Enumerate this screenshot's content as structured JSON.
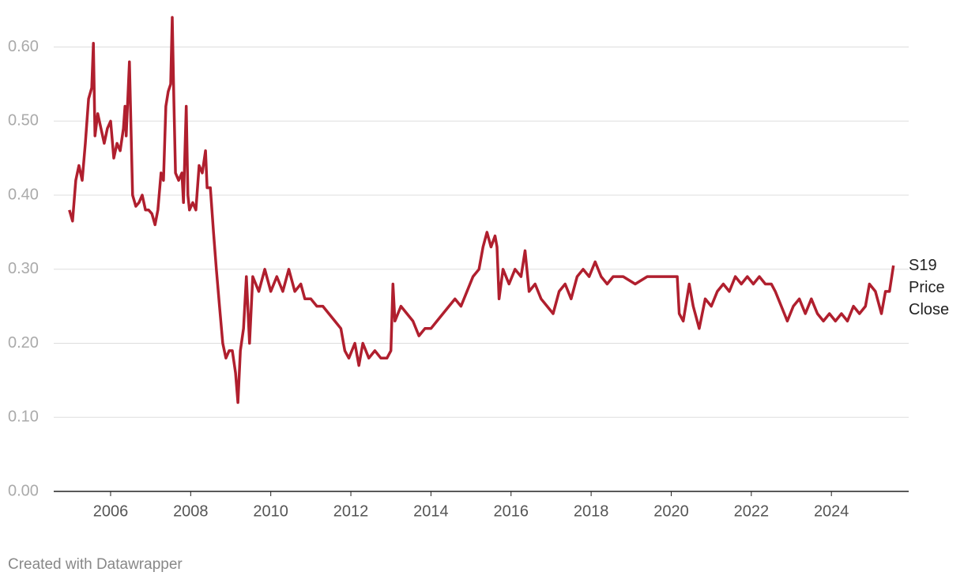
{
  "chart_data": {
    "type": "line",
    "x": [
      2004.97,
      2005.05,
      2005.13,
      2005.21,
      2005.29,
      2005.37,
      2005.45,
      2005.53,
      2005.57,
      2005.61,
      2005.68,
      2005.76,
      2005.84,
      2005.92,
      2006.0,
      2006.08,
      2006.16,
      2006.24,
      2006.32,
      2006.36,
      2006.39,
      2006.47,
      2006.55,
      2006.63,
      2006.71,
      2006.79,
      2006.87,
      2006.95,
      2007.03,
      2007.11,
      2007.18,
      2007.26,
      2007.32,
      2007.38,
      2007.44,
      2007.5,
      2007.54,
      2007.58,
      2007.62,
      2007.7,
      2007.78,
      2007.82,
      2007.89,
      2007.93,
      2007.97,
      2008.05,
      2008.13,
      2008.21,
      2008.29,
      2008.37,
      2008.41,
      2008.49,
      2008.57,
      2008.64,
      2008.72,
      2008.8,
      2008.88,
      2008.96,
      2009.04,
      2009.12,
      2009.18,
      2009.24,
      2009.32,
      2009.39,
      2009.47,
      2009.55,
      2009.7,
      2009.85,
      2010.0,
      2010.15,
      2010.3,
      2010.45,
      2010.6,
      2010.75,
      2010.85,
      2011.0,
      2011.15,
      2011.3,
      2011.45,
      2011.6,
      2011.75,
      2011.85,
      2011.95,
      2012.1,
      2012.2,
      2012.3,
      2012.45,
      2012.6,
      2012.75,
      2012.9,
      2013.0,
      2013.05,
      2013.1,
      2013.25,
      2013.4,
      2013.55,
      2013.7,
      2013.85,
      2014.0,
      2014.15,
      2014.3,
      2014.45,
      2014.6,
      2014.75,
      2014.9,
      2015.05,
      2015.2,
      2015.3,
      2015.4,
      2015.5,
      2015.6,
      2015.65,
      2015.7,
      2015.8,
      2015.95,
      2016.1,
      2016.25,
      2016.35,
      2016.45,
      2016.6,
      2016.75,
      2016.9,
      2017.05,
      2017.2,
      2017.35,
      2017.5,
      2017.65,
      2017.8,
      2017.95,
      2018.1,
      2018.25,
      2018.4,
      2018.55,
      2018.8,
      2019.1,
      2019.4,
      2019.7,
      2020.0,
      2020.15,
      2020.2,
      2020.3,
      2020.45,
      2020.55,
      2020.7,
      2020.85,
      2021.0,
      2021.15,
      2021.3,
      2021.45,
      2021.6,
      2021.75,
      2021.9,
      2022.05,
      2022.2,
      2022.35,
      2022.5,
      2022.6,
      2022.75,
      2022.9,
      2023.05,
      2023.2,
      2023.35,
      2023.5,
      2023.65,
      2023.8,
      2023.95,
      2024.1,
      2024.25,
      2024.4,
      2024.55,
      2024.7,
      2024.85,
      2024.95,
      2025.1,
      2025.25,
      2025.35,
      2025.45,
      2025.55
    ],
    "series": [
      {
        "name": "S19 Price Close",
        "color": "#b01f2e",
        "values": [
          0.38,
          0.365,
          0.42,
          0.44,
          0.42,
          0.47,
          0.53,
          0.545,
          0.605,
          0.48,
          0.51,
          0.49,
          0.47,
          0.49,
          0.5,
          0.45,
          0.47,
          0.46,
          0.49,
          0.52,
          0.48,
          0.58,
          0.4,
          0.385,
          0.39,
          0.4,
          0.38,
          0.38,
          0.375,
          0.36,
          0.38,
          0.43,
          0.42,
          0.52,
          0.54,
          0.55,
          0.64,
          0.53,
          0.43,
          0.42,
          0.43,
          0.39,
          0.52,
          0.4,
          0.38,
          0.39,
          0.38,
          0.44,
          0.43,
          0.46,
          0.41,
          0.41,
          0.35,
          0.3,
          0.25,
          0.2,
          0.18,
          0.19,
          0.19,
          0.16,
          0.12,
          0.19,
          0.22,
          0.29,
          0.2,
          0.29,
          0.27,
          0.3,
          0.27,
          0.29,
          0.27,
          0.3,
          0.27,
          0.28,
          0.26,
          0.26,
          0.25,
          0.25,
          0.24,
          0.23,
          0.22,
          0.19,
          0.18,
          0.2,
          0.17,
          0.2,
          0.18,
          0.19,
          0.18,
          0.18,
          0.19,
          0.28,
          0.23,
          0.25,
          0.24,
          0.23,
          0.21,
          0.22,
          0.22,
          0.23,
          0.24,
          0.25,
          0.26,
          0.25,
          0.27,
          0.29,
          0.3,
          0.33,
          0.35,
          0.33,
          0.345,
          0.33,
          0.26,
          0.3,
          0.28,
          0.3,
          0.29,
          0.325,
          0.27,
          0.28,
          0.26,
          0.25,
          0.24,
          0.27,
          0.28,
          0.26,
          0.29,
          0.3,
          0.29,
          0.31,
          0.29,
          0.28,
          0.29,
          0.29,
          0.28,
          0.29,
          0.29,
          0.29,
          0.29,
          0.24,
          0.23,
          0.28,
          0.25,
          0.22,
          0.26,
          0.25,
          0.27,
          0.28,
          0.27,
          0.29,
          0.28,
          0.29,
          0.28,
          0.29,
          0.28,
          0.28,
          0.27,
          0.25,
          0.23,
          0.25,
          0.26,
          0.24,
          0.26,
          0.24,
          0.23,
          0.24,
          0.23,
          0.24,
          0.23,
          0.25,
          0.24,
          0.25,
          0.28,
          0.27,
          0.24,
          0.27,
          0.27,
          0.305
        ]
      }
    ],
    "xlim": [
      2004.58,
      2025.93
    ],
    "xticks": [
      2006,
      2008,
      2010,
      2012,
      2014,
      2016,
      2018,
      2020,
      2022,
      2024
    ],
    "ylim": [
      0,
      0.64
    ],
    "yticks": [
      {
        "value": 0,
        "label": "0.00"
      },
      {
        "value": 0.1,
        "label": "0.10"
      },
      {
        "value": 0.2,
        "label": "0.20"
      },
      {
        "value": 0.3,
        "label": "0.30"
      },
      {
        "value": 0.4,
        "label": "0.40"
      },
      {
        "value": 0.5,
        "label": "0.50"
      },
      {
        "value": 0.6,
        "label": "0.60"
      }
    ],
    "grid": true,
    "credit": "Created with Datawrapper"
  }
}
